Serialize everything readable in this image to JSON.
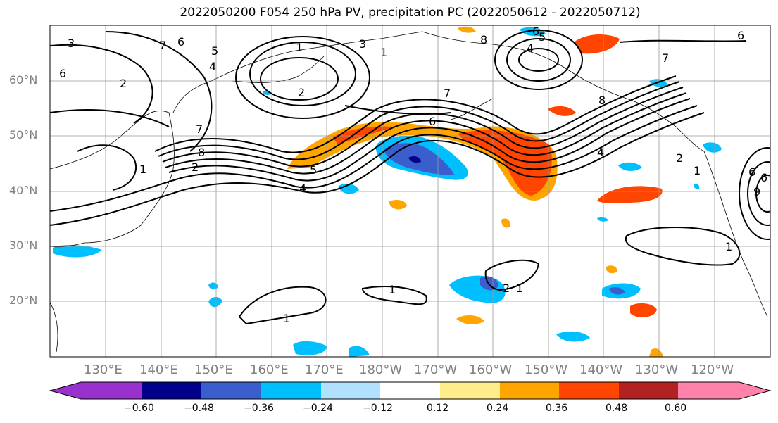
{
  "title": "2022050200 F054 250 hPa PV, precipitation PC (2022050612 - 2022050712)",
  "lat_labels": [
    "60°N",
    "50°N",
    "40°N",
    "30°N",
    "20°N"
  ],
  "lon_labels": [
    "130°E",
    "140°E",
    "150°E",
    "160°E",
    "170°E",
    "180°W",
    "170°W",
    "160°W",
    "150°W",
    "140°W",
    "130°W",
    "120°W"
  ],
  "contour_labels": [
    "3",
    "7",
    "6",
    "5",
    "4",
    "6",
    "1",
    "3",
    "2",
    "7",
    "2",
    "4",
    "5",
    "6",
    "1",
    "8",
    "7",
    "5",
    "4",
    "6",
    "8",
    "7",
    "6",
    "1",
    "2",
    "8",
    "4",
    "1",
    "1",
    "2",
    "1",
    "1",
    "9",
    "6",
    "6",
    "2",
    "1"
  ],
  "colorbar": {
    "colors": [
      "#9932cc",
      "#00008b",
      "#3a5fcd",
      "#00bfff",
      "#b0e2ff",
      "#ffffff",
      "#ffec8b",
      "#ffa500",
      "#ff4500",
      "#b22222",
      "#ff82ab"
    ],
    "ticks": [
      "−0.60",
      "−0.48",
      "−0.36",
      "−0.24",
      "−0.12",
      "0.12",
      "0.24",
      "0.36",
      "0.48",
      "0.60"
    ]
  }
}
